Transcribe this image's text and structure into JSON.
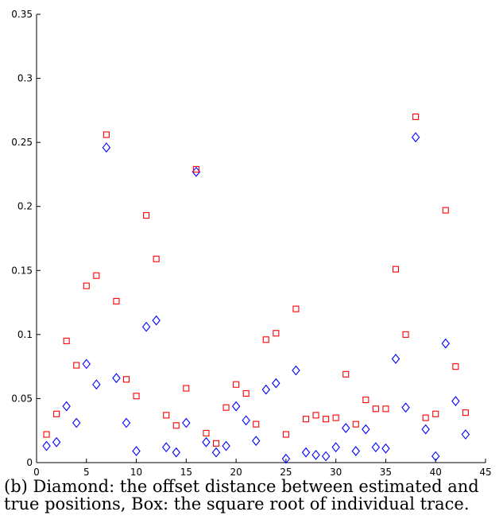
{
  "chart_data": {
    "type": "scatter",
    "title": "",
    "xlabel": "",
    "ylabel": "",
    "xlim": [
      0,
      45
    ],
    "ylim": [
      0,
      0.35
    ],
    "xticks": [
      0,
      5,
      10,
      15,
      20,
      25,
      30,
      35,
      40,
      45
    ],
    "yticks": [
      0,
      0.05,
      0.1,
      0.15,
      0.2,
      0.25,
      0.3,
      0.35
    ],
    "xtick_labels": [
      "0",
      "5",
      "10",
      "15",
      "20",
      "25",
      "30",
      "35",
      "40",
      "45"
    ],
    "ytick_labels": [
      "0",
      "0.05",
      "0.1",
      "0.15",
      "0.2",
      "0.25",
      "0.3",
      "0.35"
    ],
    "grid": false,
    "legend": "none",
    "x": [
      1,
      2,
      3,
      4,
      5,
      6,
      7,
      8,
      9,
      10,
      11,
      12,
      13,
      14,
      15,
      16,
      17,
      18,
      19,
      20,
      21,
      22,
      23,
      24,
      25,
      26,
      27,
      28,
      29,
      30,
      31,
      32,
      33,
      34,
      35,
      36,
      37,
      38,
      39,
      40,
      41,
      42,
      43
    ],
    "series": [
      {
        "marker": "diamond",
        "color": "#0000ff",
        "values": [
          0.013,
          0.016,
          0.044,
          0.031,
          0.077,
          0.061,
          0.246,
          0.066,
          0.031,
          0.009,
          0.106,
          0.111,
          0.012,
          0.008,
          0.031,
          0.227,
          0.016,
          0.008,
          0.013,
          0.044,
          0.033,
          0.017,
          0.057,
          0.062,
          0.003,
          0.072,
          0.008,
          0.006,
          0.005,
          0.012,
          0.027,
          0.009,
          0.026,
          0.012,
          0.011,
          0.081,
          0.043,
          0.254,
          0.026,
          0.005,
          0.093,
          0.048,
          0.022
        ]
      },
      {
        "marker": "square",
        "color": "#ff0000",
        "values": [
          0.022,
          0.038,
          0.095,
          0.076,
          0.138,
          0.146,
          0.256,
          0.126,
          0.065,
          0.052,
          0.193,
          0.159,
          0.037,
          0.029,
          0.058,
          0.229,
          0.023,
          0.015,
          0.043,
          0.061,
          0.054,
          0.03,
          0.096,
          0.101,
          0.022,
          0.12,
          0.034,
          0.037,
          0.034,
          0.035,
          0.069,
          0.03,
          0.049,
          0.042,
          0.042,
          0.151,
          0.1,
          0.27,
          0.035,
          0.038,
          0.197,
          0.075,
          0.039
        ]
      }
    ]
  },
  "caption": {
    "line1": "(b) Diamond: the offset distance between estimated and",
    "line2": "true positions, Box: the square root of individual trace."
  }
}
